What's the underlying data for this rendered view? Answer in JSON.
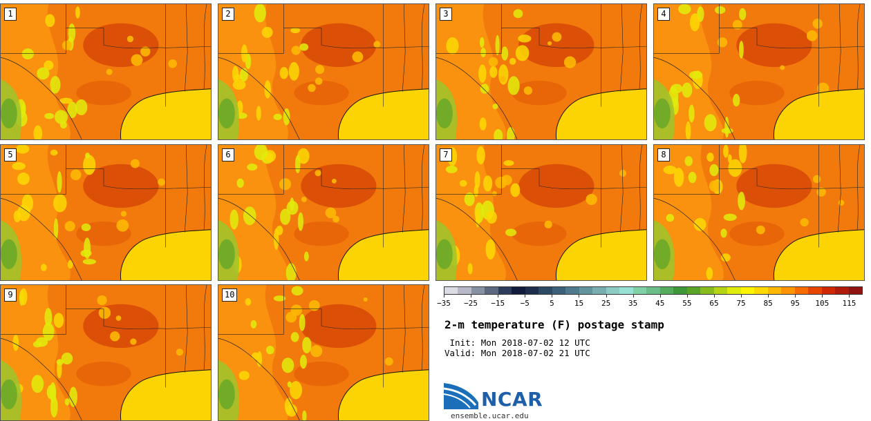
{
  "title": "2-m temperature (F) postage stamp",
  "init_label": " Init:",
  "init_value": "Mon 2018-07-02 12 UTC",
  "valid_label": "Valid:",
  "valid_value": "Mon 2018-07-02 21 UTC",
  "logo_text": "NCAR",
  "site": "ensemble.ucar.edu",
  "members": [
    "1",
    "2",
    "3",
    "4",
    "5",
    "6",
    "7",
    "8",
    "9",
    "10"
  ],
  "colorbar": {
    "ticks": [
      "−35",
      "−25",
      "−15",
      "−5",
      "5",
      "15",
      "25",
      "35",
      "45",
      "55",
      "65",
      "75",
      "85",
      "95",
      "105",
      "115"
    ],
    "tick_values": [
      -35,
      -25,
      -15,
      -5,
      5,
      15,
      25,
      35,
      45,
      55,
      65,
      75,
      85,
      95,
      105,
      115
    ],
    "min": -35,
    "max": 120,
    "step": 5,
    "colors": [
      "#dcdce4",
      "#b8b8c8",
      "#8890a4",
      "#5c6880",
      "#2e3c5c",
      "#111c3c",
      "#1c2e4c",
      "#2c4a64",
      "#3c607a",
      "#4e7a8c",
      "#62949e",
      "#78aeb0",
      "#8ccac4",
      "#96e0d4",
      "#80d0a8",
      "#6cbe88",
      "#54ac5c",
      "#3e9838",
      "#5aa428",
      "#88bc1c",
      "#b4d414",
      "#e0ec0c",
      "#fcf404",
      "#fcd804",
      "#fcb804",
      "#fc9404",
      "#f86c04",
      "#e84404",
      "#d02804",
      "#b01c0c",
      "#901410"
    ]
  }
}
